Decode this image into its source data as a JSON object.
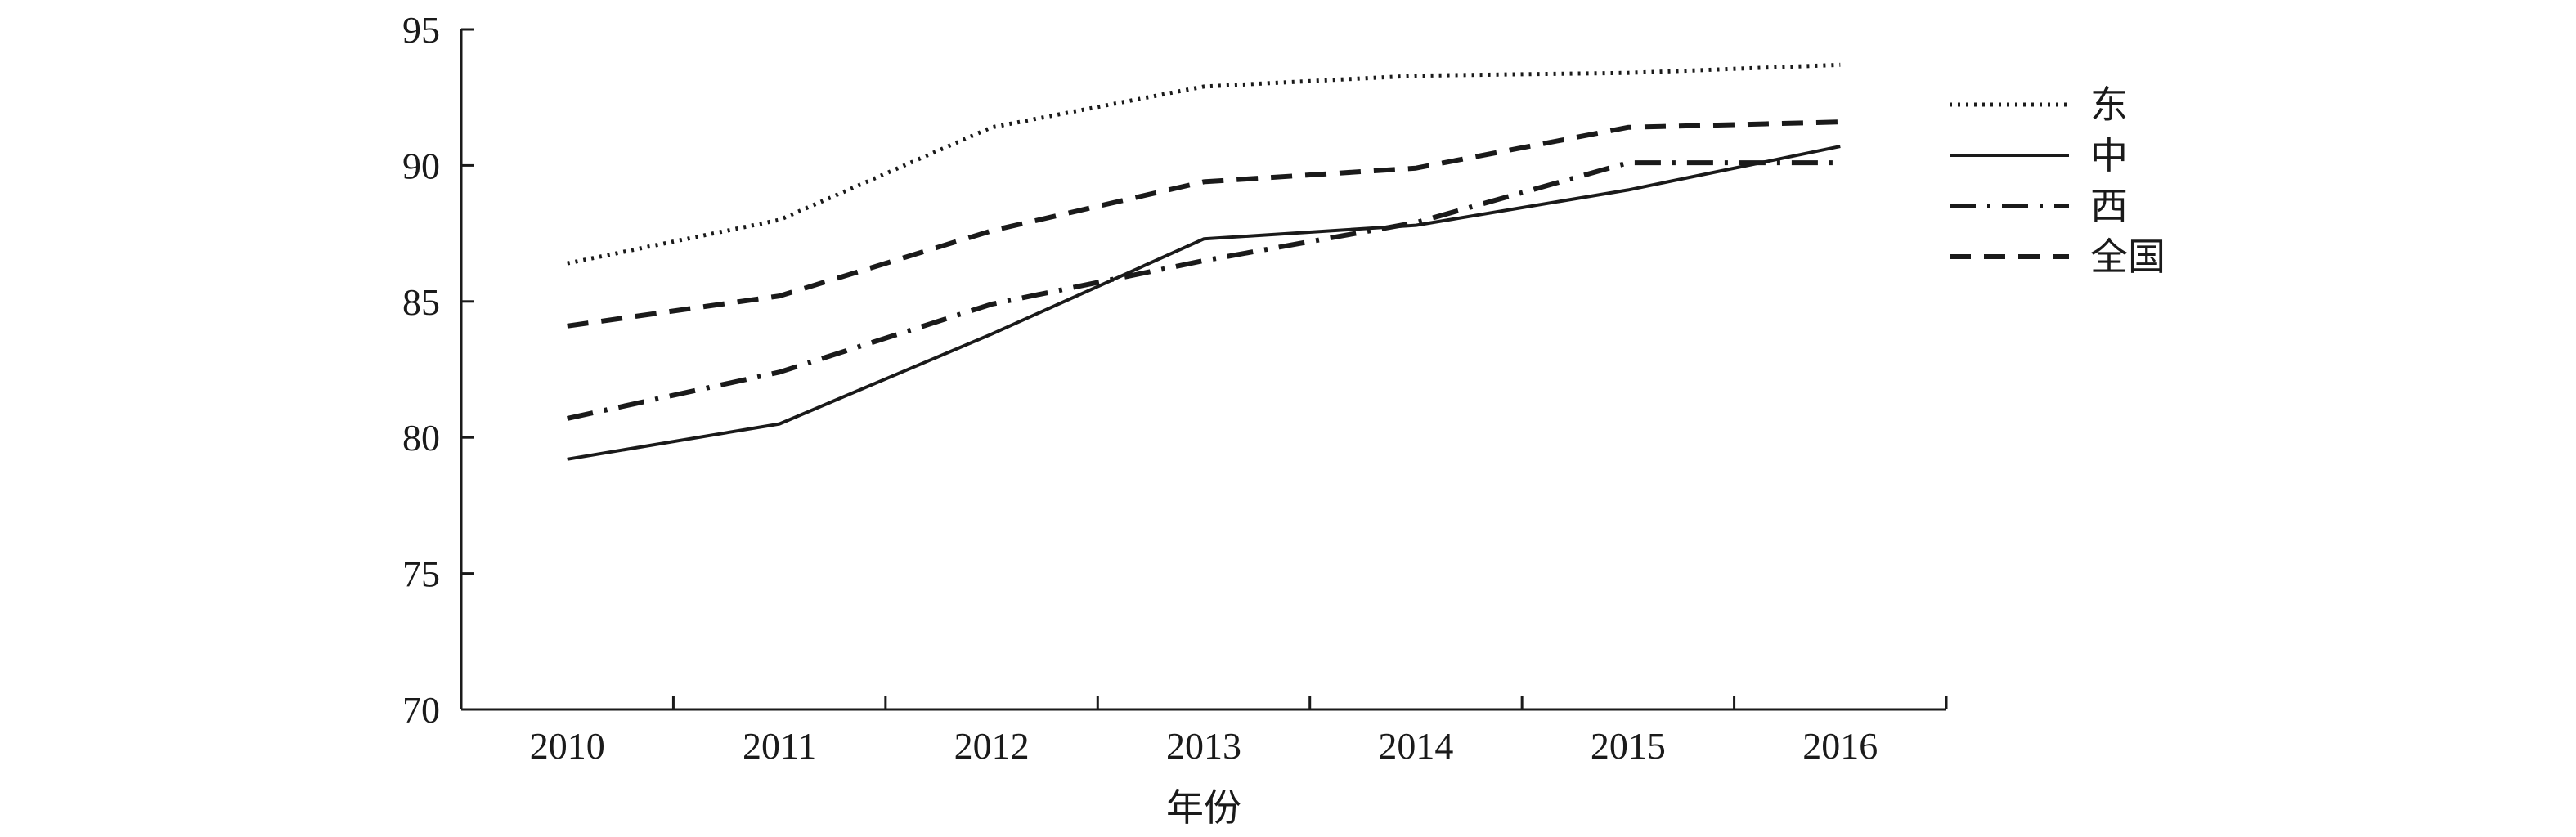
{
  "chart_data": {
    "type": "line",
    "title": "",
    "xlabel": "年份",
    "ylabel": "",
    "categories": [
      "2010",
      "2011",
      "2012",
      "2013",
      "2014",
      "2015",
      "2016"
    ],
    "ylim": [
      70,
      95
    ],
    "yticks": [
      70,
      75,
      80,
      85,
      90,
      95
    ],
    "grid": false,
    "legend_position": "right",
    "series": [
      {
        "name": "东",
        "style": "dotted",
        "values": [
          86.4,
          88.0,
          91.4,
          92.9,
          93.3,
          93.4,
          93.7
        ]
      },
      {
        "name": "中",
        "style": "solid",
        "values": [
          79.2,
          80.5,
          83.8,
          87.3,
          87.8,
          89.1,
          90.7
        ]
      },
      {
        "name": "西",
        "style": "dash-dot",
        "values": [
          80.7,
          82.4,
          84.9,
          86.5,
          87.9,
          90.1,
          90.1
        ]
      },
      {
        "name": "全国",
        "style": "dashed",
        "values": [
          84.1,
          85.2,
          87.6,
          89.4,
          89.9,
          91.4,
          91.6
        ]
      }
    ]
  }
}
